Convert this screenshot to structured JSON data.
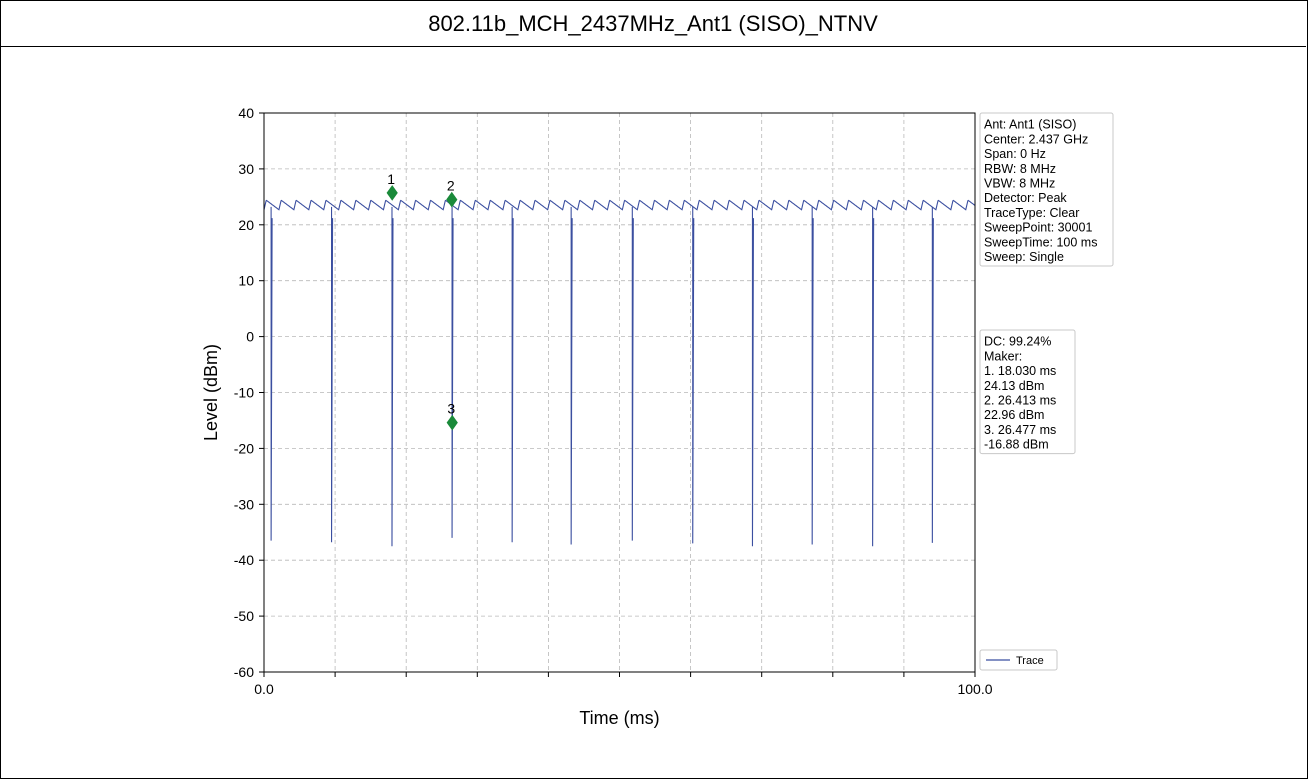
{
  "page": {
    "title": "802.11b_MCH_2437MHz_Ant1 (SISO)_NTNV"
  },
  "chart_data": {
    "type": "line",
    "xlabel": "Time (ms)",
    "ylabel": "Level (dBm)",
    "xlim": [
      0,
      100
    ],
    "ylim": [
      -60,
      40
    ],
    "x_tick_labels": [
      "0.0",
      "100.0"
    ],
    "x_ticks_major": [
      0,
      10,
      20,
      30,
      40,
      50,
      60,
      70,
      80,
      90,
      100
    ],
    "y_ticks": [
      40,
      30,
      20,
      10,
      0,
      -10,
      -20,
      -30,
      -40,
      -50,
      -60
    ],
    "grid": true,
    "series": [
      {
        "name": "Trace",
        "color": "#3b4fa0",
        "baseline_dBm": 23.2,
        "ripple_period_ms": 2.1,
        "ripple_peak_dBm": 24.4,
        "drop_times_ms": [
          1.0,
          9.5,
          18.0,
          26.45,
          34.9,
          43.2,
          51.8,
          60.3,
          68.7,
          77.1,
          85.6,
          94.0
        ],
        "drop_min_dBm": [
          -36.5,
          -36.8,
          -37.5,
          -36.0,
          -36.8,
          -37.2,
          -36.5,
          -37.0,
          -37.5,
          -37.2,
          -37.5,
          -36.9
        ]
      }
    ],
    "markers": [
      {
        "label": "1",
        "x": 18.03,
        "y": 25.7
      },
      {
        "label": "2",
        "x": 26.413,
        "y": 24.5
      },
      {
        "label": "3",
        "x": 26.477,
        "y": -15.4
      }
    ],
    "marker_color": "#1a8a3a",
    "info_box": [
      "Ant: Ant1 (SISO)",
      "Center: 2.437 GHz",
      "Span: 0 Hz",
      "RBW: 8 MHz",
      "VBW: 8 MHz",
      "Detector: Peak",
      "TraceType: Clear",
      "SweepPoint: 30001",
      "SweepTime: 100 ms",
      "Sweep: Single"
    ],
    "marker_box": [
      "DC: 99.24%",
      "Maker:",
      "1. 18.030 ms",
      "    24.13 dBm",
      "2. 26.413 ms",
      "    22.96 dBm",
      "3. 26.477 ms",
      "    -16.88 dBm"
    ],
    "legend": {
      "label": "Trace",
      "placement": "lower-right outside"
    }
  }
}
